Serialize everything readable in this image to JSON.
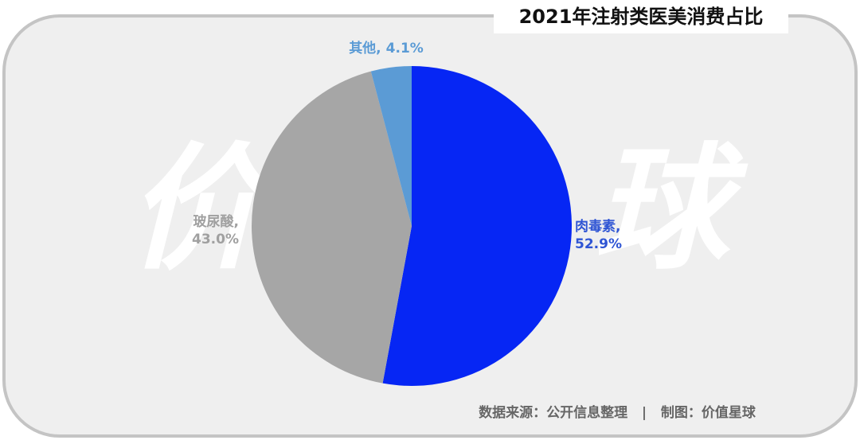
{
  "chart_data": {
    "type": "pie",
    "title": "2021年注射类医美消费占比",
    "categories": [
      "肉毒素,",
      "玻尿酸,",
      "其他,"
    ],
    "values": [
      52.9,
      43.0,
      4.1
    ],
    "value_labels": [
      "52.9%",
      "43.0%",
      "4.1%"
    ],
    "colors": [
      "#0626f4",
      "#a6a6a6",
      "#5b9bd5"
    ],
    "label_colors": [
      "#2f55d4",
      "#a0a0a0",
      "#5b9bd5"
    ],
    "watermark": [
      "价",
      "球"
    ],
    "source": "数据来源：公开信息整理   |   制图：价值星球"
  }
}
